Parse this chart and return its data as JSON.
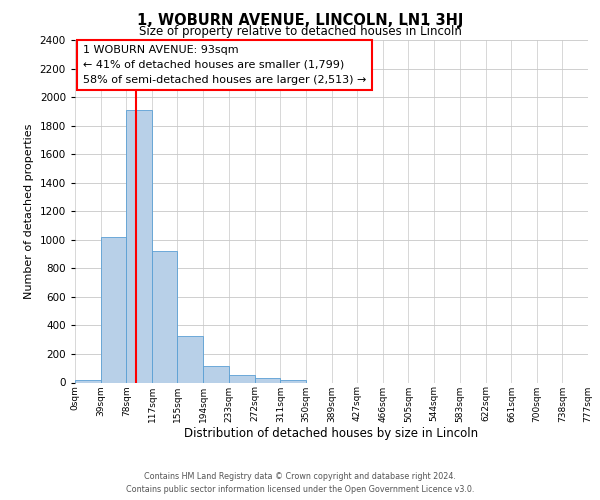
{
  "title": "1, WOBURN AVENUE, LINCOLN, LN1 3HJ",
  "subtitle": "Size of property relative to detached houses in Lincoln",
  "xlabel": "Distribution of detached houses by size in Lincoln",
  "ylabel": "Number of detached properties",
  "bar_color": "#b8d0e8",
  "bar_edge_color": "#5a9fd4",
  "background_color": "#ffffff",
  "grid_color": "#c8c8c8",
  "redline_x": 93,
  "bin_edges": [
    0,
    39,
    78,
    117,
    155,
    194,
    233,
    272,
    311,
    350,
    389,
    427,
    466,
    505,
    544,
    583,
    622,
    661,
    700,
    738,
    777
  ],
  "bin_labels": [
    "0sqm",
    "39sqm",
    "78sqm",
    "117sqm",
    "155sqm",
    "194sqm",
    "233sqm",
    "272sqm",
    "311sqm",
    "350sqm",
    "389sqm",
    "427sqm",
    "466sqm",
    "505sqm",
    "544sqm",
    "583sqm",
    "622sqm",
    "661sqm",
    "700sqm",
    "738sqm",
    "777sqm"
  ],
  "counts": [
    20,
    1020,
    1910,
    920,
    325,
    115,
    55,
    30,
    20,
    0,
    0,
    0,
    0,
    0,
    0,
    0,
    0,
    0,
    0,
    0
  ],
  "ylim": [
    0,
    2400
  ],
  "yticks": [
    0,
    200,
    400,
    600,
    800,
    1000,
    1200,
    1400,
    1600,
    1800,
    2000,
    2200,
    2400
  ],
  "annotation_line0": "1 WOBURN AVENUE: 93sqm",
  "annotation_line1": "← 41% of detached houses are smaller (1,799)",
  "annotation_line2": "58% of semi-detached houses are larger (2,513) →",
  "footer_line1": "Contains HM Land Registry data © Crown copyright and database right 2024.",
  "footer_line2": "Contains public sector information licensed under the Open Government Licence v3.0."
}
